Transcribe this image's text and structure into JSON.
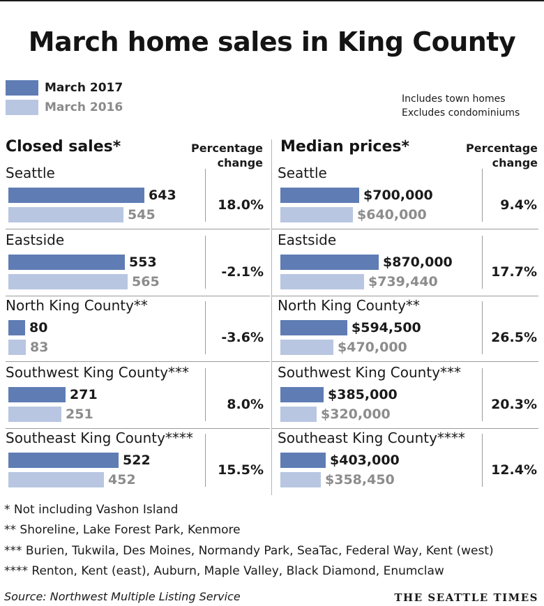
{
  "title": "March home sales in King County",
  "legend": {
    "current": "March 2017",
    "previous": "March 2016"
  },
  "notes": [
    "Includes town homes",
    "Excludes condominiums"
  ],
  "colors": {
    "current": "#5f7db4",
    "previous": "#b8c6e1"
  },
  "chart_data": [
    {
      "type": "bar",
      "title": "Closed sales*",
      "pct_header": "Percentage change",
      "categories": [
        "Seattle",
        "Eastside",
        "North King County**",
        "Southwest King County***",
        "Southeast King County****"
      ],
      "series": [
        {
          "name": "March 2017",
          "values": [
            643,
            553,
            80,
            271,
            522
          ],
          "labels": [
            "643",
            "553",
            "80",
            "271",
            "522"
          ]
        },
        {
          "name": "March 2016",
          "values": [
            545,
            565,
            83,
            251,
            452
          ],
          "labels": [
            "545",
            "565",
            "83",
            "251",
            "452"
          ]
        }
      ],
      "pct_change": [
        "18.0%",
        "-2.1%",
        "-3.6%",
        "8.0%",
        "15.5%"
      ],
      "xlim": [
        0,
        700
      ]
    },
    {
      "type": "bar",
      "title": "Median prices*",
      "pct_header": "Percentage change",
      "categories": [
        "Seattle",
        "Eastside",
        "North King County**",
        "Southwest King County***",
        "Southeast King County****"
      ],
      "series": [
        {
          "name": "March 2017",
          "values": [
            700000,
            870000,
            594500,
            385000,
            403000
          ],
          "labels": [
            "$700,000",
            "$870,000",
            "$594,500",
            "$385,000",
            "$403,000"
          ]
        },
        {
          "name": "March 2016",
          "values": [
            640000,
            739440,
            470000,
            320000,
            358450
          ],
          "labels": [
            "$640,000",
            "$739,440",
            "$470,000",
            "$320,000",
            "$358,450"
          ]
        }
      ],
      "pct_change": [
        "9.4%",
        "17.7%",
        "26.5%",
        "20.3%",
        "12.4%"
      ],
      "xlim": [
        0,
        1000000
      ]
    }
  ],
  "footnotes": [
    "* Not including Vashon Island",
    "**  Shoreline, Lake Forest Park, Kenmore",
    "*** Burien, Tukwila, Des Moines, Normandy Park, SeaTac, Federal Way, Kent (west)",
    "**** Renton, Kent (east), Auburn, Maple Valley, Black Diamond, Enumclaw"
  ],
  "source": "Source: Northwest Multiple Listing Service",
  "brand": "THE SEATTLE TIMES"
}
